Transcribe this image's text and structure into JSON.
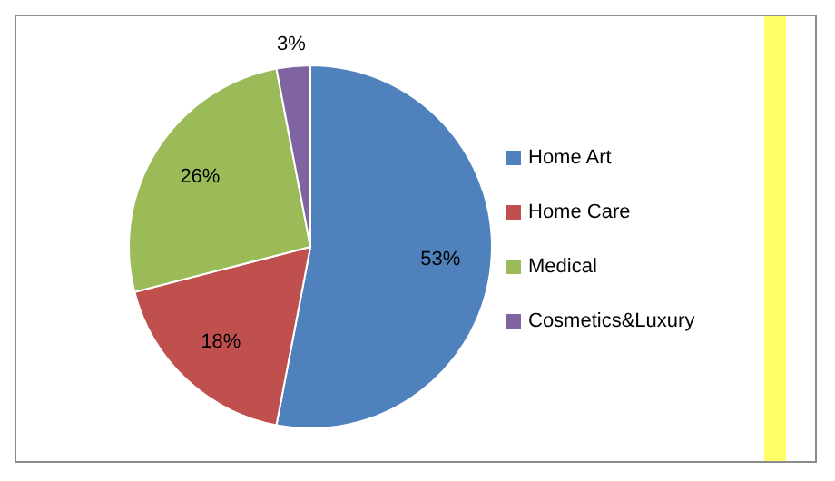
{
  "chart_data": {
    "type": "pie",
    "categories": [
      "Home Art",
      "Home Care",
      "Medical",
      "Cosmetics&Luxury"
    ],
    "values": [
      53,
      18,
      26,
      3
    ],
    "colors": [
      "#4f81bd",
      "#c0504d",
      "#9bbb59",
      "#8064a2"
    ],
    "value_labels": [
      "53%",
      "18%",
      "26%",
      "3%"
    ],
    "legend": "right"
  }
}
